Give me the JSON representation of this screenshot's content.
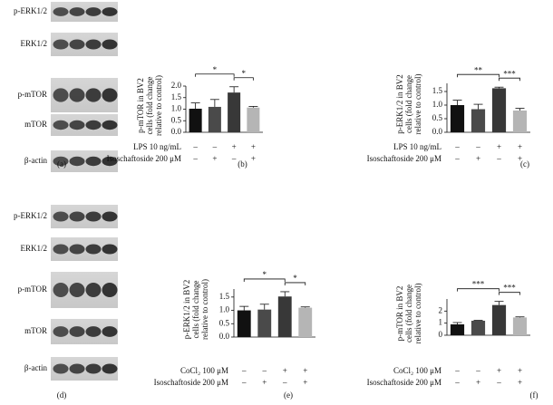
{
  "blots": [
    {
      "panel": "(a)",
      "rows": [
        "p-ERK1/2",
        "ERK1/2",
        "p-mTOR",
        "mTOR",
        "β-actin"
      ]
    },
    {
      "panel": "(d)",
      "rows": [
        "p-ERK1/2",
        "ERK1/2",
        "p-mTOR",
        "mTOR",
        "β-actin"
      ]
    }
  ],
  "chart_data": [
    {
      "type": "bar",
      "panel": "(b)",
      "y_label": [
        "p-mTOR in BV2",
        "cells (fold change",
        "relative to control)"
      ],
      "values": [
        1.02,
        1.1,
        1.72,
        1.07
      ],
      "errors": [
        0.25,
        0.32,
        0.25,
        0.05
      ],
      "colors": [
        "#111111",
        "#4a4a4a",
        "#383838",
        "#b5b5b5"
      ],
      "ylim": [
        0,
        2
      ],
      "yticks": [
        {
          "value": 0,
          "label": "0.0"
        },
        {
          "value": 0.5,
          "label": "0.5"
        },
        {
          "value": 1,
          "label": "1.0"
        },
        {
          "value": 1.5,
          "label": "1.5"
        },
        {
          "value": 2,
          "label": "2.0"
        }
      ],
      "conditions": [
        {
          "label": "LPS 10 ng/mL",
          "signs": [
            "–",
            "–",
            "+",
            "+"
          ]
        },
        {
          "label": "Isoschaftoside 200 μM",
          "signs": [
            "–",
            "+",
            "–",
            "+"
          ]
        }
      ],
      "significance": [
        {
          "from": 0,
          "to": 2,
          "label": "*"
        },
        {
          "from": 2,
          "to": 3,
          "label": "*"
        }
      ]
    },
    {
      "type": "bar",
      "panel": "(c)",
      "y_label": [
        "p-ERK1/2 in BV2",
        "cells (fold change",
        "relative to control)"
      ],
      "values": [
        1.0,
        0.85,
        1.62,
        0.8
      ],
      "errors": [
        0.18,
        0.18,
        0.04,
        0.08
      ],
      "colors": [
        "#111111",
        "#4a4a4a",
        "#383838",
        "#b5b5b5"
      ],
      "ylim": [
        0,
        1.8
      ],
      "yticks": [
        {
          "value": 0,
          "label": "0.0"
        },
        {
          "value": 0.5,
          "label": "0.5"
        },
        {
          "value": 1,
          "label": "1.0"
        },
        {
          "value": 1.5,
          "label": "1.5"
        }
      ],
      "conditions": [
        {
          "label": "LPS 10 ng/mL",
          "signs": [
            "–",
            "–",
            "+",
            "+"
          ]
        },
        {
          "label": "Isoschaftoside 200 μM",
          "signs": [
            "–",
            "+",
            "–",
            "+"
          ]
        }
      ],
      "significance": [
        {
          "from": 0,
          "to": 2,
          "label": "**"
        },
        {
          "from": 2,
          "to": 3,
          "label": "***"
        }
      ]
    },
    {
      "type": "bar",
      "panel": "(e)",
      "y_label": [
        "p-ERK1/2 in BV2",
        "cells (fold change",
        "relative to control)"
      ],
      "values": [
        1.0,
        1.03,
        1.52,
        1.1
      ],
      "errors": [
        0.15,
        0.2,
        0.18,
        0.03
      ],
      "colors": [
        "#111111",
        "#4a4a4a",
        "#383838",
        "#b5b5b5"
      ],
      "ylim": [
        0,
        1.8
      ],
      "yticks": [
        {
          "value": 0,
          "label": "0.0"
        },
        {
          "value": 0.5,
          "label": "0.5"
        },
        {
          "value": 1,
          "label": "1.0"
        },
        {
          "value": 1.5,
          "label": "1.5"
        }
      ],
      "conditions": [
        {
          "label": "CoCl₂ 100 μM",
          "signs": [
            "–",
            "–",
            "+",
            "+"
          ]
        },
        {
          "label": "Isoschaftoside 200 μM",
          "signs": [
            "–",
            "+",
            "–",
            "+"
          ]
        }
      ],
      "significance": [
        {
          "from": 0,
          "to": 2,
          "label": "*"
        },
        {
          "from": 2,
          "to": 3,
          "label": "*"
        }
      ]
    },
    {
      "type": "bar",
      "panel": "(f)",
      "y_label": [
        "p-mTOR in BV2",
        "cells (fold change",
        "relative to control)"
      ],
      "values": [
        0.9,
        1.2,
        2.5,
        1.47
      ],
      "errors": [
        0.15,
        0.03,
        0.3,
        0.05
      ],
      "colors": [
        "#111111",
        "#4a4a4a",
        "#383838",
        "#b5b5b5"
      ],
      "ylim": [
        0,
        3
      ],
      "yticks": [
        0,
        1,
        2
      ],
      "conditions": [
        {
          "label": "CoCl₂ 100 μM",
          "signs": [
            "–",
            "–",
            "+",
            "+"
          ]
        },
        {
          "label": "Isoschaftoside 200 μM",
          "signs": [
            "–",
            "+",
            "–",
            "+"
          ]
        }
      ],
      "significance": [
        {
          "from": 0,
          "to": 2,
          "label": "***"
        },
        {
          "from": 2,
          "to": 3,
          "label": "***"
        }
      ]
    }
  ]
}
